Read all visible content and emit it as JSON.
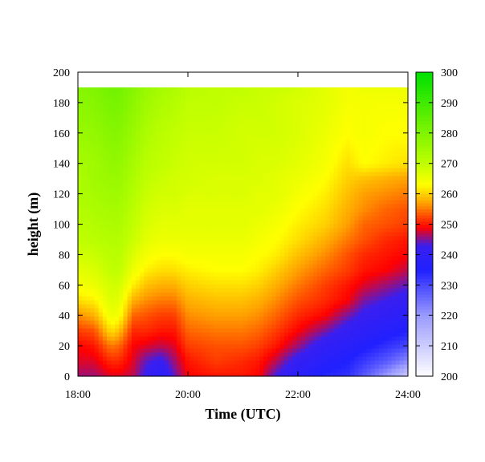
{
  "chart_data": {
    "type": "heatmap",
    "xlabel": "Time (UTC)",
    "ylabel": "height (m)",
    "x_ticks": [
      "18:00",
      "20:00",
      "22:00",
      "24:00"
    ],
    "x_tick_hours": [
      18,
      20,
      22,
      24
    ],
    "xlim_hours": [
      18,
      24
    ],
    "y_ticks": [
      "0",
      "20",
      "40",
      "60",
      "80",
      "100",
      "120",
      "140",
      "160",
      "180",
      "200"
    ],
    "y_tick_values": [
      0,
      20,
      40,
      60,
      80,
      100,
      120,
      140,
      160,
      180,
      200
    ],
    "ylim": [
      0,
      200
    ],
    "data_max_height": 190,
    "colorbar": {
      "ticks": [
        "200",
        "210",
        "220",
        "230",
        "240",
        "250",
        "260",
        "270",
        "280",
        "290",
        "300"
      ],
      "tick_values": [
        200,
        210,
        220,
        230,
        240,
        250,
        260,
        270,
        280,
        290,
        300
      ],
      "range": [
        200,
        300
      ],
      "colormap": [
        {
          "value": 200,
          "color": "#ffffff"
        },
        {
          "value": 220,
          "color": "#9a9aff"
        },
        {
          "value": 235,
          "color": "#2020ff"
        },
        {
          "value": 243,
          "color": "#3a1ff0"
        },
        {
          "value": 249,
          "color": "#ff0000"
        },
        {
          "value": 257,
          "color": "#ffa000"
        },
        {
          "value": 263,
          "color": "#ffff00"
        },
        {
          "value": 270,
          "color": "#c0ff00"
        },
        {
          "value": 300,
          "color": "#00e000"
        }
      ]
    },
    "grid": false,
    "legend": "none",
    "profile_hours": [
      18.0,
      18.3,
      18.6,
      18.75,
      19.0,
      19.25,
      19.5,
      19.75,
      20.0,
      20.5,
      21.0,
      21.3,
      21.6,
      22.0,
      22.5,
      22.9,
      23.2,
      23.6,
      24.0
    ],
    "profile_heights": [
      0,
      10,
      20,
      30,
      40,
      50,
      60,
      70,
      80,
      90,
      100,
      110,
      120,
      130,
      140,
      160,
      180,
      190
    ],
    "values": [
      [
        246,
        248,
        249,
        252,
        256,
        261,
        264,
        266,
        268,
        270,
        271,
        272,
        273,
        273,
        274,
        276,
        278,
        279
      ],
      [
        246,
        248,
        250,
        253,
        258,
        262,
        265,
        267,
        269,
        271,
        272,
        273,
        274,
        275,
        275,
        277,
        279,
        280
      ],
      [
        248,
        251,
        255,
        261,
        265,
        267,
        268,
        270,
        271,
        272,
        273,
        274,
        275,
        276,
        277,
        279,
        281,
        282
      ],
      [
        248,
        251,
        254,
        259,
        264,
        266,
        268,
        270,
        271,
        272,
        273,
        274,
        275,
        276,
        277,
        279,
        281,
        282
      ],
      [
        247,
        248,
        249,
        251,
        254,
        258,
        262,
        265,
        267,
        269,
        270,
        271,
        272,
        273,
        274,
        276,
        278,
        279
      ],
      [
        242,
        244,
        248,
        251,
        253,
        256,
        259,
        262,
        264,
        266,
        267,
        268,
        269,
        270,
        271,
        273,
        275,
        276
      ],
      [
        238,
        242,
        247,
        250,
        252,
        255,
        258,
        261,
        263,
        265,
        266,
        267,
        268,
        269,
        270,
        271,
        273,
        274
      ],
      [
        244,
        246,
        248,
        250,
        252,
        255,
        258,
        261,
        263,
        265,
        266,
        267,
        268,
        268,
        269,
        270,
        272,
        273
      ],
      [
        249,
        250,
        252,
        254,
        256,
        258,
        260,
        262,
        264,
        265,
        266,
        266,
        267,
        268,
        268,
        269,
        270,
        271
      ],
      [
        250,
        252,
        253,
        255,
        257,
        259,
        261,
        263,
        264,
        265,
        266,
        266,
        267,
        267,
        268,
        269,
        270,
        270
      ],
      [
        250,
        251,
        253,
        255,
        257,
        259,
        261,
        263,
        264,
        265,
        266,
        266,
        267,
        267,
        268,
        268,
        269,
        270
      ],
      [
        249,
        250,
        252,
        254,
        256,
        258,
        260,
        262,
        263,
        264,
        265,
        266,
        266,
        267,
        267,
        268,
        269,
        269
      ],
      [
        243,
        247,
        250,
        252,
        254,
        256,
        258,
        260,
        262,
        263,
        264,
        265,
        266,
        266,
        267,
        268,
        268,
        269
      ],
      [
        238,
        241,
        246,
        249,
        251,
        253,
        255,
        257,
        259,
        261,
        262,
        263,
        264,
        265,
        266,
        267,
        267,
        268
      ],
      [
        234,
        237,
        240,
        245,
        249,
        251,
        252,
        254,
        256,
        258,
        260,
        261,
        262,
        263,
        264,
        265,
        266,
        266
      ],
      [
        233,
        235,
        238,
        241,
        245,
        249,
        250,
        252,
        253,
        255,
        257,
        258,
        259,
        260,
        261,
        263,
        264,
        264
      ],
      [
        228,
        232,
        236,
        239,
        242,
        245,
        248,
        250,
        251,
        253,
        254,
        256,
        257,
        259,
        263,
        264,
        264,
        265
      ],
      [
        220,
        228,
        233,
        237,
        240,
        243,
        246,
        249,
        250,
        251,
        253,
        254,
        256,
        258,
        262,
        263,
        264,
        265
      ],
      [
        210,
        222,
        230,
        235,
        238,
        241,
        244,
        247,
        249,
        250,
        252,
        253,
        255,
        257,
        261,
        263,
        264,
        265
      ]
    ]
  }
}
